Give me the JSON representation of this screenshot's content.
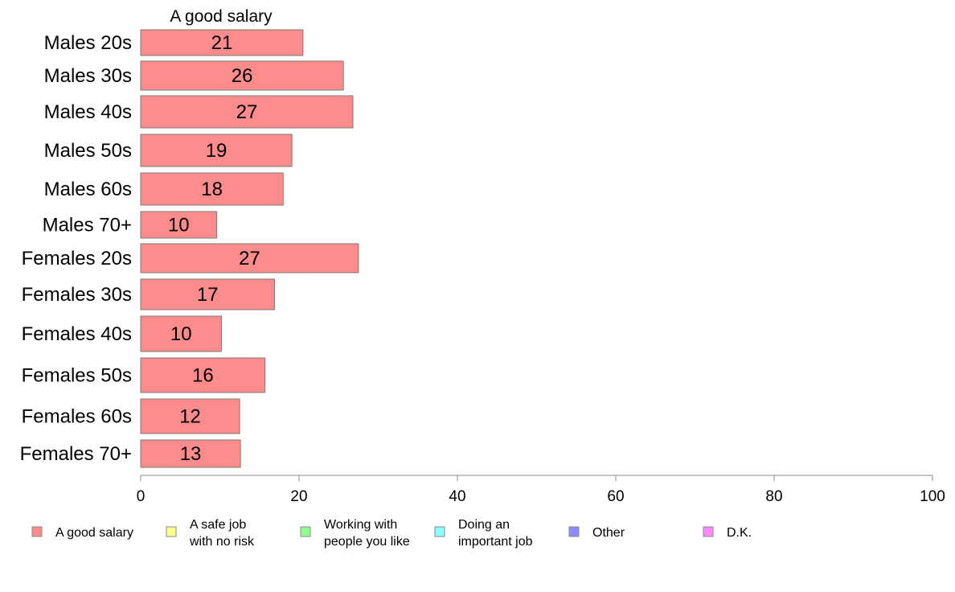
{
  "chart_data": {
    "type": "bar",
    "orientation": "horizontal",
    "title": "A good salary",
    "categories": [
      "Males 20s",
      "Males 30s",
      "Males 40s",
      "Males 50s",
      "Males 60s",
      "Males 70+",
      "Females 20s",
      "Females 30s",
      "Females 40s",
      "Females 50s",
      "Females 60s",
      "Females 70+"
    ],
    "series": [
      {
        "name": "A good salary",
        "color": "#ff8c8c",
        "values": [
          20.5,
          25.6,
          26.8,
          19.1,
          18.0,
          9.6,
          27.5,
          16.9,
          10.2,
          15.7,
          12.5,
          12.6
        ],
        "labels": [
          "21",
          "26",
          "27",
          "19",
          "18",
          "10",
          "27",
          "17",
          "10",
          "16",
          "12",
          "13"
        ]
      }
    ],
    "xlim": [
      0,
      100
    ],
    "xticks": [
      "0",
      "20",
      "40",
      "60",
      "80",
      "100"
    ],
    "grid": false,
    "legend": {
      "position": "bottom",
      "items": [
        {
          "label": [
            "A good salary"
          ],
          "color": "#ff8c8c"
        },
        {
          "label": [
            "A safe job",
            "with no risk"
          ],
          "color": "#ffff8c"
        },
        {
          "label": [
            "Working with",
            "people you like"
          ],
          "color": "#8cff8c"
        },
        {
          "label": [
            "Doing an",
            "important job"
          ],
          "color": "#8cffff"
        },
        {
          "label": [
            "Other"
          ],
          "color": "#8c8cff"
        },
        {
          "label": [
            "D.K."
          ],
          "color": "#ff8cff"
        }
      ]
    }
  }
}
